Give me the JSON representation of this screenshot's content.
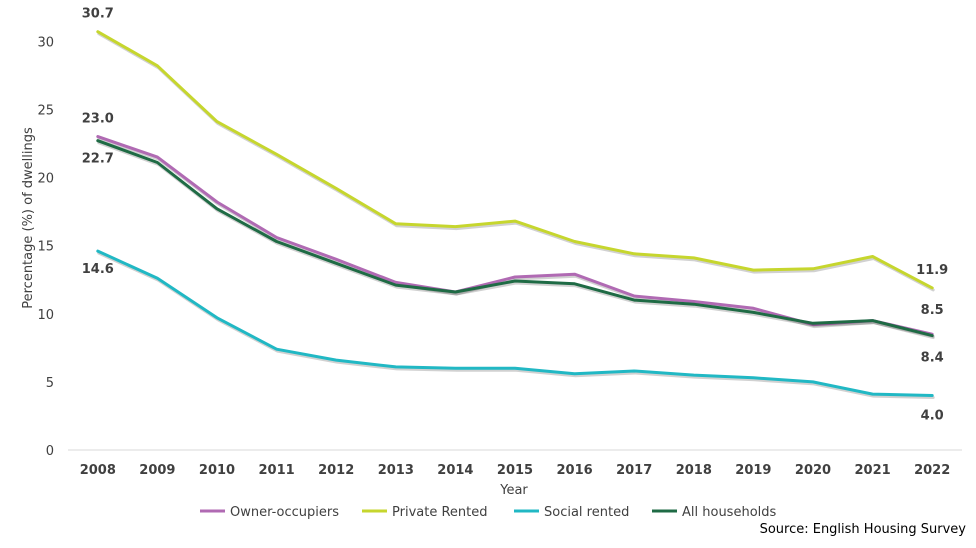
{
  "chart_data": {
    "type": "line",
    "title": "",
    "xlabel": "Year",
    "ylabel": "Percentage (%) of dwellings",
    "ylim": [
      0,
      32
    ],
    "yticks": [
      0,
      5,
      10,
      15,
      20,
      25,
      30
    ],
    "categories": [
      "2008",
      "2009",
      "2010",
      "2011",
      "2012",
      "2013",
      "2014",
      "2015",
      "2016",
      "2017",
      "2018",
      "2019",
      "2020",
      "2021",
      "2022"
    ],
    "series": [
      {
        "name": "Owner-occupiers",
        "color": "#B06AB3",
        "values": [
          23.0,
          21.5,
          18.2,
          15.6,
          14.0,
          12.3,
          11.6,
          12.7,
          12.9,
          11.3,
          10.9,
          10.4,
          9.2,
          9.5,
          8.5
        ]
      },
      {
        "name": "Private Rented",
        "color": "#C6D62E",
        "values": [
          30.7,
          28.2,
          24.1,
          21.7,
          19.2,
          16.6,
          16.4,
          16.8,
          15.3,
          14.4,
          14.1,
          13.2,
          13.3,
          14.2,
          11.9
        ]
      },
      {
        "name": "Social rented",
        "color": "#21B8C4",
        "values": [
          14.6,
          12.6,
          9.7,
          7.4,
          6.6,
          6.1,
          6.0,
          6.0,
          5.6,
          5.8,
          5.5,
          5.3,
          5.0,
          4.1,
          4.0
        ]
      },
      {
        "name": "All households",
        "color": "#1F6B45",
        "values": [
          22.7,
          21.1,
          17.7,
          15.3,
          13.7,
          12.1,
          11.6,
          12.4,
          12.2,
          11.0,
          10.7,
          10.1,
          9.3,
          9.5,
          8.4
        ]
      }
    ],
    "data_labels": [
      {
        "series": "Private Rented",
        "index": 0,
        "text": "30.7"
      },
      {
        "series": "Owner-occupiers",
        "index": 0,
        "text": "23.0"
      },
      {
        "series": "All households",
        "index": 0,
        "text": "22.7"
      },
      {
        "series": "Social rented",
        "index": 0,
        "text": "14.6"
      },
      {
        "series": "Private Rented",
        "index": 14,
        "text": "11.9"
      },
      {
        "series": "Owner-occupiers",
        "index": 14,
        "text": "8.5"
      },
      {
        "series": "All households",
        "index": 14,
        "text": "8.4"
      },
      {
        "series": "Social rented",
        "index": 14,
        "text": "4.0"
      }
    ],
    "legend_position": "bottom",
    "source": "Source: English Housing Survey"
  }
}
